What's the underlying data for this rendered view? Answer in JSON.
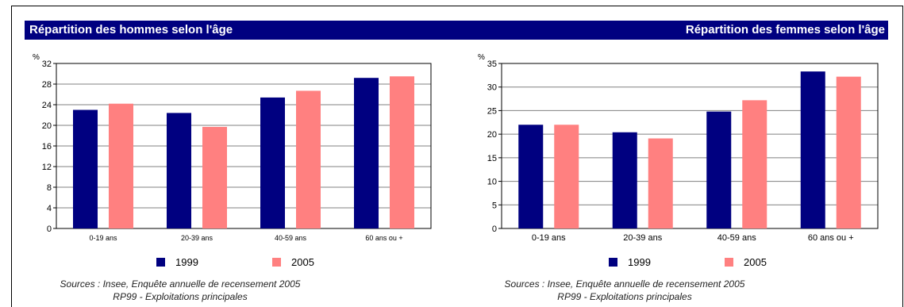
{
  "header": {
    "left_title": "Répartition des hommes selon l'âge",
    "right_title": "Répartition des femmes selon l'âge"
  },
  "colors": {
    "header_bg": "#000080",
    "series_1999": "#000080",
    "series_2005": "#FF8080"
  },
  "chart_data": [
    {
      "type": "bar",
      "title": "Répartition des hommes selon l'âge",
      "ylabel": "%",
      "xlabel": "",
      "categories": [
        "0-19 ans",
        "20-39 ans",
        "40-59 ans",
        "60 ans ou +"
      ],
      "series": [
        {
          "name": "1999",
          "color": "#000080",
          "values": [
            23.0,
            22.4,
            25.4,
            29.2
          ]
        },
        {
          "name": "2005",
          "color": "#FF8080",
          "values": [
            24.2,
            19.7,
            26.7,
            29.5
          ]
        }
      ],
      "ylim": [
        0,
        32
      ],
      "yticks": [
        0,
        4,
        8,
        12,
        16,
        20,
        24,
        28,
        32
      ],
      "grid": true,
      "legend": "bottom-center",
      "source_line1": "Sources : Insee, Enquête annuelle de recensement 2005",
      "source_line2": "RP99 - Exploitations principales"
    },
    {
      "type": "bar",
      "title": "Répartition des femmes selon l'âge",
      "ylabel": "%",
      "xlabel": "",
      "categories": [
        "0-19 ans",
        "20-39 ans",
        "40-59 ans",
        "60 ans ou +"
      ],
      "series": [
        {
          "name": "1999",
          "color": "#000080",
          "values": [
            22.0,
            20.4,
            24.8,
            33.3
          ]
        },
        {
          "name": "2005",
          "color": "#FF8080",
          "values": [
            22.0,
            19.1,
            27.2,
            32.2
          ]
        }
      ],
      "ylim": [
        0,
        35
      ],
      "yticks": [
        0,
        5,
        10,
        15,
        20,
        25,
        30,
        35
      ],
      "grid": true,
      "legend": "bottom-center",
      "source_line1": "Sources : Insee, Enquête annuelle de recensement 2005",
      "source_line2": "RP99 - Exploitations principales"
    }
  ]
}
